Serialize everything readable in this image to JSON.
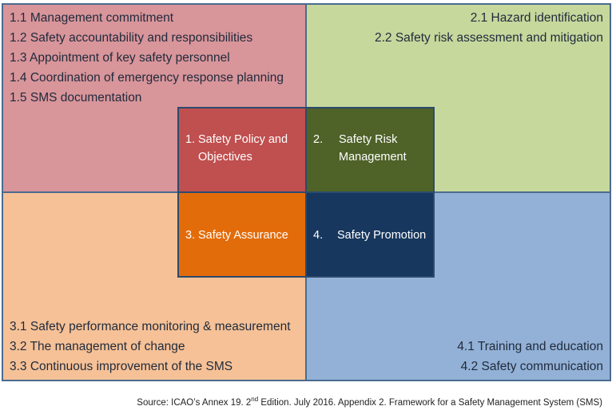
{
  "colors": {
    "q1": "#d8959a",
    "q2": "#c6d89c",
    "q3": "#f6c196",
    "q4": "#93b1d6",
    "c1": "#c04f4f",
    "c2": "#4f6228",
    "c3": "#e36c0a",
    "c4": "#17375e",
    "border": "#4a6b8f"
  },
  "quadrants": {
    "q1": [
      "1.1 Management commitment",
      "1.2 Safety accountability and responsibilities",
      "1.3 Appointment of key safety personnel",
      "1.4 Coordination of emergency response planning",
      "1.5 SMS documentation"
    ],
    "q2": [
      "2.1 Hazard identification",
      "2.2 Safety risk assessment and mitigation"
    ],
    "q3": [
      "3.1 Safety performance monitoring & measurement",
      "3.2 The management of change",
      "3.3 Continuous improvement of the SMS"
    ],
    "q4": [
      "4.1 Training and education",
      "4.2 Safety communication"
    ]
  },
  "core": {
    "c1": {
      "num": "1.",
      "line1": "Safety Policy and",
      "line2": "Objectives"
    },
    "c2": {
      "num": "2.",
      "line1": "Safety Risk",
      "line2": "Management"
    },
    "c3": {
      "num": "3.",
      "line1": "Safety Assurance",
      "line2": ""
    },
    "c4": {
      "num": "4.",
      "line1": "Safety Promotion",
      "line2": ""
    }
  },
  "source": {
    "prefix": "Source: ICAO’s Annex 19. 2",
    "sup": "nd",
    "suffix": " Edition. July 2016. Appendix 2. Framework for a Safety Management System (SMS)"
  }
}
